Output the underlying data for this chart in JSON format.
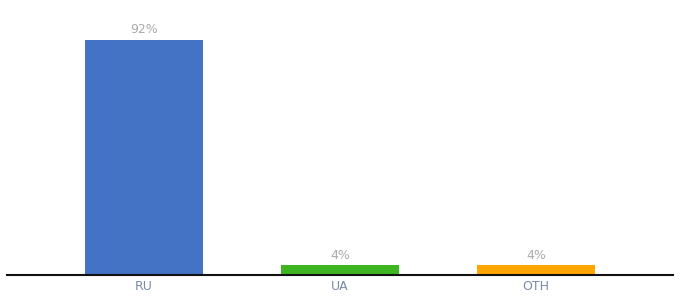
{
  "categories": [
    "RU",
    "UA",
    "OTH"
  ],
  "values": [
    92,
    4,
    4
  ],
  "bar_colors": [
    "#4472C4",
    "#3CB521",
    "#FFA500"
  ],
  "label_texts": [
    "92%",
    "4%",
    "4%"
  ],
  "title": "",
  "ylim": [
    0,
    105
  ],
  "background_color": "#ffffff",
  "bar_width": 0.6,
  "label_fontsize": 9,
  "tick_fontsize": 9,
  "tick_color": "#7a8baa",
  "label_color": "#aaaaaa",
  "spine_color": "#111111"
}
